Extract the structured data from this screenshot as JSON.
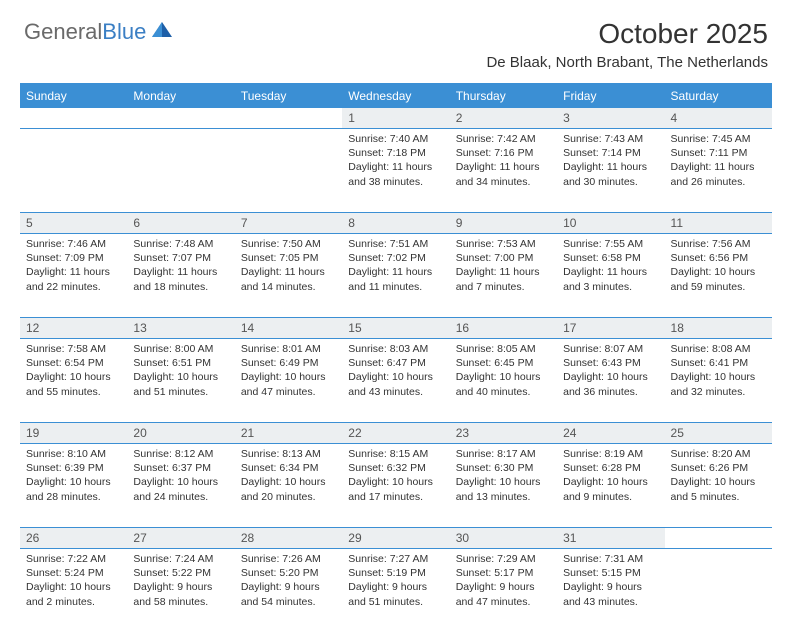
{
  "brand": {
    "name_part1": "General",
    "name_part2": "Blue"
  },
  "header": {
    "title": "October 2025",
    "location": "De Blaak, North Brabant, The Netherlands"
  },
  "colors": {
    "header_bg": "#3b8fd4",
    "row_divider": "#3b8fd4",
    "daynum_bg": "#eceff1",
    "text": "#333333",
    "logo_gray": "#6a6a6a",
    "logo_blue": "#3b7fc4"
  },
  "daysOfWeek": [
    "Sunday",
    "Monday",
    "Tuesday",
    "Wednesday",
    "Thursday",
    "Friday",
    "Saturday"
  ],
  "weeks": [
    [
      null,
      null,
      null,
      {
        "n": "1",
        "sr": "7:40 AM",
        "ss": "7:18 PM",
        "dl": "11 hours and 38 minutes."
      },
      {
        "n": "2",
        "sr": "7:42 AM",
        "ss": "7:16 PM",
        "dl": "11 hours and 34 minutes."
      },
      {
        "n": "3",
        "sr": "7:43 AM",
        "ss": "7:14 PM",
        "dl": "11 hours and 30 minutes."
      },
      {
        "n": "4",
        "sr": "7:45 AM",
        "ss": "7:11 PM",
        "dl": "11 hours and 26 minutes."
      }
    ],
    [
      {
        "n": "5",
        "sr": "7:46 AM",
        "ss": "7:09 PM",
        "dl": "11 hours and 22 minutes."
      },
      {
        "n": "6",
        "sr": "7:48 AM",
        "ss": "7:07 PM",
        "dl": "11 hours and 18 minutes."
      },
      {
        "n": "7",
        "sr": "7:50 AM",
        "ss": "7:05 PM",
        "dl": "11 hours and 14 minutes."
      },
      {
        "n": "8",
        "sr": "7:51 AM",
        "ss": "7:02 PM",
        "dl": "11 hours and 11 minutes."
      },
      {
        "n": "9",
        "sr": "7:53 AM",
        "ss": "7:00 PM",
        "dl": "11 hours and 7 minutes."
      },
      {
        "n": "10",
        "sr": "7:55 AM",
        "ss": "6:58 PM",
        "dl": "11 hours and 3 minutes."
      },
      {
        "n": "11",
        "sr": "7:56 AM",
        "ss": "6:56 PM",
        "dl": "10 hours and 59 minutes."
      }
    ],
    [
      {
        "n": "12",
        "sr": "7:58 AM",
        "ss": "6:54 PM",
        "dl": "10 hours and 55 minutes."
      },
      {
        "n": "13",
        "sr": "8:00 AM",
        "ss": "6:51 PM",
        "dl": "10 hours and 51 minutes."
      },
      {
        "n": "14",
        "sr": "8:01 AM",
        "ss": "6:49 PM",
        "dl": "10 hours and 47 minutes."
      },
      {
        "n": "15",
        "sr": "8:03 AM",
        "ss": "6:47 PM",
        "dl": "10 hours and 43 minutes."
      },
      {
        "n": "16",
        "sr": "8:05 AM",
        "ss": "6:45 PM",
        "dl": "10 hours and 40 minutes."
      },
      {
        "n": "17",
        "sr": "8:07 AM",
        "ss": "6:43 PM",
        "dl": "10 hours and 36 minutes."
      },
      {
        "n": "18",
        "sr": "8:08 AM",
        "ss": "6:41 PM",
        "dl": "10 hours and 32 minutes."
      }
    ],
    [
      {
        "n": "19",
        "sr": "8:10 AM",
        "ss": "6:39 PM",
        "dl": "10 hours and 28 minutes."
      },
      {
        "n": "20",
        "sr": "8:12 AM",
        "ss": "6:37 PM",
        "dl": "10 hours and 24 minutes."
      },
      {
        "n": "21",
        "sr": "8:13 AM",
        "ss": "6:34 PM",
        "dl": "10 hours and 20 minutes."
      },
      {
        "n": "22",
        "sr": "8:15 AM",
        "ss": "6:32 PM",
        "dl": "10 hours and 17 minutes."
      },
      {
        "n": "23",
        "sr": "8:17 AM",
        "ss": "6:30 PM",
        "dl": "10 hours and 13 minutes."
      },
      {
        "n": "24",
        "sr": "8:19 AM",
        "ss": "6:28 PM",
        "dl": "10 hours and 9 minutes."
      },
      {
        "n": "25",
        "sr": "8:20 AM",
        "ss": "6:26 PM",
        "dl": "10 hours and 5 minutes."
      }
    ],
    [
      {
        "n": "26",
        "sr": "7:22 AM",
        "ss": "5:24 PM",
        "dl": "10 hours and 2 minutes."
      },
      {
        "n": "27",
        "sr": "7:24 AM",
        "ss": "5:22 PM",
        "dl": "9 hours and 58 minutes."
      },
      {
        "n": "28",
        "sr": "7:26 AM",
        "ss": "5:20 PM",
        "dl": "9 hours and 54 minutes."
      },
      {
        "n": "29",
        "sr": "7:27 AM",
        "ss": "5:19 PM",
        "dl": "9 hours and 51 minutes."
      },
      {
        "n": "30",
        "sr": "7:29 AM",
        "ss": "5:17 PM",
        "dl": "9 hours and 47 minutes."
      },
      {
        "n": "31",
        "sr": "7:31 AM",
        "ss": "5:15 PM",
        "dl": "9 hours and 43 minutes."
      },
      null
    ]
  ],
  "labels": {
    "sunrise": "Sunrise:",
    "sunset": "Sunset:",
    "daylight": "Daylight:"
  }
}
